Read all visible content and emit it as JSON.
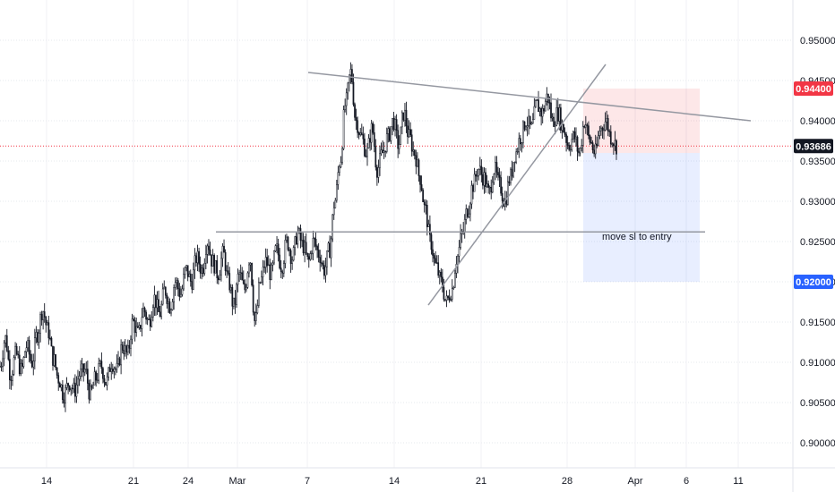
{
  "chart_data": {
    "type": "candlestick",
    "x_ticks": [
      "14",
      "21",
      "24",
      "Mar",
      "7",
      "14",
      "21",
      "28",
      "Apr",
      "6",
      "11"
    ],
    "y_ticks": [
      "0.95000",
      "0.94500",
      "0.94000",
      "0.93500",
      "0.93000",
      "0.92500",
      "0.92000",
      "0.91500",
      "0.91000",
      "0.90500",
      "0.90000"
    ],
    "ylim": [
      0.8965,
      0.9535
    ],
    "grid": true,
    "current_price": {
      "value": 0.93686,
      "label": "0.93686",
      "color": "#131722"
    },
    "stop_loss": {
      "value": 0.944,
      "label": "0.94400",
      "color": "#f23645"
    },
    "take_profit": {
      "value": 0.92,
      "label": "0.92000",
      "color": "#2962ff"
    },
    "annotation": "move sl to entry",
    "price_path": [
      [
        0.9095,
        0.913,
        0.9085,
        0.911,
        0.909,
        0.912,
        0.91,
        0.9135
      ],
      [
        0.9165,
        0.914,
        0.9105,
        0.908,
        0.906,
        0.9075,
        0.9065,
        0.9085,
        0.909,
        0.906,
        0.908,
        0.9095,
        0.9075,
        0.91
      ],
      [
        0.909,
        0.912,
        0.911,
        0.915,
        0.9135,
        0.9165,
        0.915,
        0.918,
        0.916,
        0.919,
        0.917,
        0.92,
        0.9185,
        0.9215
      ],
      [
        0.92,
        0.923,
        0.9215,
        0.925,
        0.9225,
        0.921,
        0.9235,
        0.92,
        0.917,
        0.921,
        0.919,
        0.923,
        0.915,
        0.92
      ],
      [
        0.9225,
        0.921,
        0.924,
        0.922,
        0.925,
        0.923,
        0.926,
        0.9245,
        0.9225,
        0.925,
        0.9235,
        0.9215,
        0.924,
        0.93
      ],
      [
        0.935,
        0.942,
        0.946,
        0.94,
        0.938,
        0.936,
        0.939,
        0.934,
        0.936,
        0.938,
        0.94,
        0.937,
        0.941,
        0.938
      ],
      [
        0.936,
        0.933,
        0.929,
        0.925,
        0.922,
        0.92,
        0.9175,
        0.919,
        0.923,
        0.926,
        0.929,
        0.932,
        0.934,
        0.933
      ],
      [
        0.931,
        0.934,
        0.932,
        0.93,
        0.933,
        0.936,
        0.938,
        0.94,
        0.939,
        0.942,
        0.941,
        0.943,
        0.94,
        0.941
      ],
      [
        0.939,
        0.937,
        0.938,
        0.936,
        0.94,
        0.9375,
        0.936,
        0.939,
        0.94,
        0.938,
        0.9369
      ]
    ]
  }
}
